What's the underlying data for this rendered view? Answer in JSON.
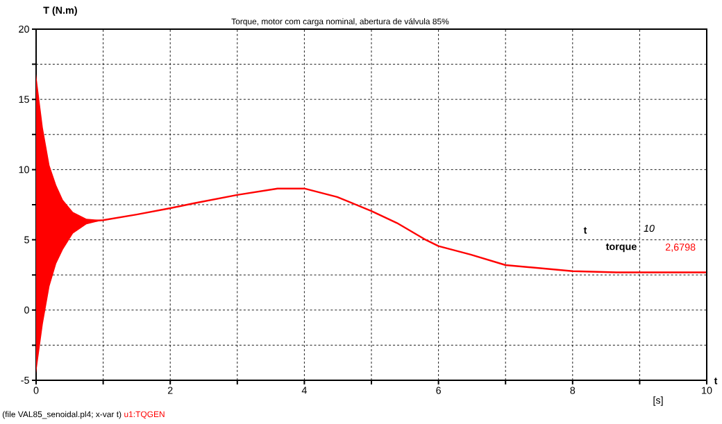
{
  "chart_data": {
    "type": "line",
    "title": "Torque, motor com carga nominal, abertura de válvula 85%",
    "xlabel": "[s]",
    "ylabel": "T (N.m)",
    "annotations": [
      "t",
      "10",
      "torque",
      "2,6798",
      "(file VAL85_senoidal.pl4; x-var t)",
      "u1:TQGEN",
      "t"
    ],
    "series": [
      {
        "color": "#ff0000",
        "x": [
          0,
          0.1,
          0.2,
          0.3,
          0.4,
          0.55,
          0.75,
          1,
          1.5,
          2,
          2.35,
          3,
          3.6,
          4,
          4.49,
          5,
          5.38,
          5.79,
          6,
          6.48,
          7,
          8,
          8.66,
          9,
          10
        ],
        "values": [
          null,
          null,
          null,
          null,
          null,
          null,
          6.3,
          6.4,
          6.8,
          7.25,
          7.6,
          8.2,
          8.65,
          8.65,
          8.05,
          7.05,
          6.2,
          5.05,
          4.55,
          3.95,
          3.2,
          2.77,
          2.68,
          2.68,
          2.68
        ],
        "upper": [
          16.8,
          13,
          10.3,
          8.9,
          7.84,
          6.98,
          6.5,
          6.4,
          null,
          null,
          null,
          null,
          null,
          null,
          null,
          null,
          null,
          null,
          null,
          null,
          null,
          null,
          null,
          null,
          null
        ],
        "lower": [
          -4.5,
          -1,
          1.7,
          3.3,
          4.3,
          5.45,
          6.1,
          6.4,
          null,
          null,
          null,
          null,
          null,
          null,
          null,
          null,
          null,
          null,
          null,
          null,
          null,
          null,
          null,
          null,
          null
        ]
      }
    ],
    "xlim": [
      0,
      10
    ],
    "ylim": [
      -5,
      20
    ],
    "xticks": [
      0,
      {
        "value": 1,
        "label": null
      },
      2,
      {
        "value": 3,
        "label": null
      },
      4,
      {
        "value": 5,
        "label": null
      },
      6,
      {
        "value": 7,
        "label": null
      },
      8,
      {
        "value": 9,
        "label": null
      },
      10
    ],
    "yticks": [
      -5,
      {
        "value": -2.5,
        "label": null
      },
      0,
      {
        "value": 2.5,
        "label": null
      },
      5,
      {
        "value": 7.5,
        "label": null
      },
      10,
      {
        "value": 12.5,
        "label": null
      },
      15,
      {
        "value": 17.5,
        "label": null
      },
      20
    ],
    "grid": true,
    "line_style": "solid"
  }
}
